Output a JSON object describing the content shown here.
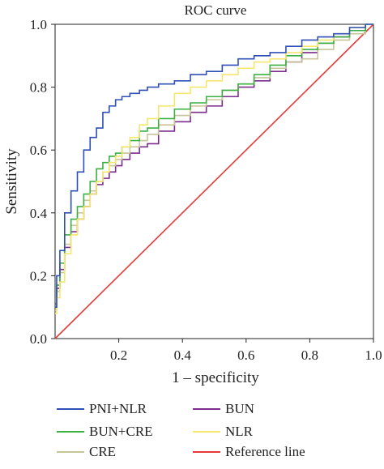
{
  "chart_data": {
    "type": "line",
    "title": "ROC curve",
    "xlabel": "1 – specificity",
    "ylabel": "Sensitivity",
    "xlim": [
      0,
      1
    ],
    "ylim": [
      0,
      1
    ],
    "x_ticks": [
      "0.2",
      "0.4",
      "0.6",
      "0.8",
      "1.0"
    ],
    "y_ticks": [
      "0.0",
      "0.2",
      "0.4",
      "0.6",
      "0.8",
      "1.0"
    ],
    "grid": false,
    "legend_placement": "bottom",
    "series": [
      {
        "name": "PNI+NLR",
        "color": "#2e4fb5",
        "x": [
          0,
          0.01,
          0.02,
          0.04,
          0.06,
          0.08,
          0.1,
          0.12,
          0.14,
          0.16,
          0.18,
          0.2,
          0.22,
          0.25,
          0.28,
          0.3,
          0.35,
          0.4,
          0.45,
          0.5,
          0.55,
          0.6,
          0.65,
          0.7,
          0.75,
          0.8,
          0.85,
          0.9,
          0.95,
          1.0
        ],
        "y": [
          0.1,
          0.2,
          0.28,
          0.4,
          0.47,
          0.53,
          0.6,
          0.64,
          0.67,
          0.72,
          0.74,
          0.76,
          0.77,
          0.78,
          0.79,
          0.8,
          0.81,
          0.82,
          0.84,
          0.85,
          0.87,
          0.89,
          0.9,
          0.91,
          0.93,
          0.95,
          0.96,
          0.97,
          0.99,
          1.0
        ]
      },
      {
        "name": "BUN+CRE",
        "color": "#3cb043",
        "x": [
          0,
          0.01,
          0.02,
          0.04,
          0.06,
          0.08,
          0.1,
          0.12,
          0.14,
          0.16,
          0.18,
          0.2,
          0.22,
          0.25,
          0.28,
          0.3,
          0.35,
          0.4,
          0.45,
          0.5,
          0.55,
          0.6,
          0.65,
          0.7,
          0.75,
          0.8,
          0.85,
          0.9,
          0.95,
          1.0
        ],
        "y": [
          0.1,
          0.17,
          0.24,
          0.33,
          0.38,
          0.42,
          0.46,
          0.5,
          0.54,
          0.56,
          0.58,
          0.59,
          0.61,
          0.63,
          0.66,
          0.67,
          0.7,
          0.73,
          0.75,
          0.77,
          0.79,
          0.81,
          0.84,
          0.87,
          0.9,
          0.92,
          0.94,
          0.96,
          0.98,
          1.0
        ]
      },
      {
        "name": "CRE",
        "color": "#c9c49a",
        "x": [
          0,
          0.01,
          0.02,
          0.04,
          0.06,
          0.08,
          0.1,
          0.12,
          0.14,
          0.16,
          0.18,
          0.2,
          0.22,
          0.25,
          0.28,
          0.3,
          0.35,
          0.4,
          0.45,
          0.5,
          0.55,
          0.6,
          0.65,
          0.7,
          0.75,
          0.8,
          0.85,
          0.9,
          0.95,
          1.0
        ],
        "y": [
          0.09,
          0.15,
          0.21,
          0.3,
          0.36,
          0.4,
          0.44,
          0.47,
          0.5,
          0.53,
          0.55,
          0.57,
          0.59,
          0.61,
          0.63,
          0.65,
          0.68,
          0.71,
          0.74,
          0.76,
          0.79,
          0.81,
          0.83,
          0.86,
          0.88,
          0.89,
          0.92,
          0.95,
          0.97,
          1.0
        ]
      },
      {
        "name": "BUN",
        "color": "#7b2d8e",
        "x": [
          0,
          0.01,
          0.02,
          0.04,
          0.06,
          0.08,
          0.1,
          0.12,
          0.14,
          0.16,
          0.18,
          0.2,
          0.22,
          0.25,
          0.28,
          0.3,
          0.35,
          0.4,
          0.45,
          0.5,
          0.55,
          0.6,
          0.65,
          0.7,
          0.75,
          0.8,
          0.85,
          0.9,
          0.95,
          1.0
        ],
        "y": [
          0.11,
          0.16,
          0.22,
          0.29,
          0.34,
          0.38,
          0.42,
          0.46,
          0.49,
          0.51,
          0.53,
          0.55,
          0.57,
          0.59,
          0.61,
          0.62,
          0.66,
          0.69,
          0.72,
          0.74,
          0.77,
          0.8,
          0.82,
          0.85,
          0.88,
          0.91,
          0.94,
          0.96,
          0.98,
          1.0
        ]
      },
      {
        "name": "NLR",
        "color": "#f5e66e",
        "x": [
          0,
          0.01,
          0.02,
          0.04,
          0.06,
          0.08,
          0.1,
          0.12,
          0.14,
          0.16,
          0.18,
          0.2,
          0.22,
          0.25,
          0.28,
          0.3,
          0.35,
          0.4,
          0.45,
          0.5,
          0.55,
          0.6,
          0.65,
          0.7,
          0.75,
          0.8,
          0.85,
          0.9,
          0.95,
          1.0
        ],
        "y": [
          0.08,
          0.13,
          0.18,
          0.27,
          0.33,
          0.38,
          0.42,
          0.46,
          0.5,
          0.53,
          0.56,
          0.58,
          0.61,
          0.64,
          0.68,
          0.7,
          0.74,
          0.78,
          0.8,
          0.82,
          0.84,
          0.86,
          0.88,
          0.89,
          0.91,
          0.93,
          0.95,
          0.97,
          0.99,
          1.0
        ]
      },
      {
        "name": "Reference line",
        "color": "#e63a3a",
        "x": [
          0,
          1
        ],
        "y": [
          0,
          1
        ]
      }
    ]
  }
}
